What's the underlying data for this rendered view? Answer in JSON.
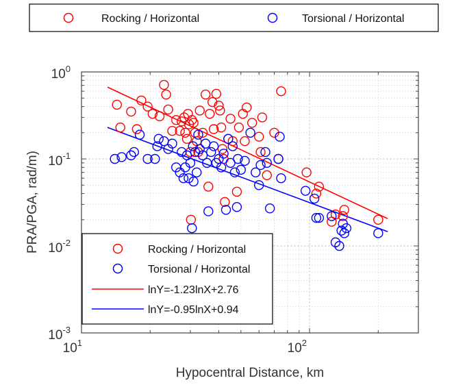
{
  "chart_data": {
    "type": "scatter",
    "xlabel": "Hypocentral Distance, km",
    "ylabel": "PRA/PGA, rad/m)",
    "x_scale": "log",
    "y_scale": "log",
    "xlim": [
      10,
      300
    ],
    "ylim": [
      0.001,
      1
    ],
    "x_ticks": [
      {
        "base": "10",
        "exp": "1",
        "value": 10
      },
      {
        "base": "10",
        "exp": "2",
        "value": 100
      }
    ],
    "y_ticks": [
      {
        "base": "10",
        "exp": "0",
        "value": 1
      },
      {
        "base": "10",
        "exp": "-1",
        "value": 0.1
      },
      {
        "base": "10",
        "exp": "-2",
        "value": 0.01
      },
      {
        "base": "10",
        "exp": "-3",
        "value": 0.001
      }
    ],
    "grid": true,
    "top_legend": {
      "placement": "top",
      "entries": [
        {
          "label": "Rocking / Horizontal",
          "series": 0
        },
        {
          "label": "Torsional / Horizontal",
          "series": 1
        }
      ]
    },
    "inner_legend": {
      "placement": "bottom-left",
      "entries": [
        {
          "label": "Rocking / Horizontal",
          "kind": "marker",
          "color": "#ff0000"
        },
        {
          "label": "Torsional / Horizontal",
          "kind": "marker",
          "color": "#0000ff"
        },
        {
          "label": "lnY=-1.23lnX+2.76",
          "kind": "line",
          "color": "#ff0000"
        },
        {
          "label": "lnY=-0.95lnX+0.94",
          "kind": "line",
          "color": "#0000ff"
        }
      ]
    },
    "series": [
      {
        "name": "Rocking / Horizontal",
        "marker": "open-circle",
        "color": "#ff0000",
        "points": [
          [
            14.3,
            0.42
          ],
          [
            14.8,
            0.23
          ],
          [
            16.5,
            0.35
          ],
          [
            17.5,
            0.22
          ],
          [
            18.3,
            0.47
          ],
          [
            19.5,
            0.4
          ],
          [
            20.5,
            0.33
          ],
          [
            22,
            0.31
          ],
          [
            23,
            0.71
          ],
          [
            23.5,
            0.55
          ],
          [
            24,
            0.37
          ],
          [
            25,
            0.21
          ],
          [
            26,
            0.28
          ],
          [
            27,
            0.21
          ],
          [
            27.5,
            0.27
          ],
          [
            28.2,
            0.3
          ],
          [
            28.5,
            0.2
          ],
          [
            29,
            0.17
          ],
          [
            29.3,
            0.33
          ],
          [
            29.6,
            0.25
          ],
          [
            30,
            0.12
          ],
          [
            30.2,
            0.02
          ],
          [
            30.5,
            0.28
          ],
          [
            31,
            0.26
          ],
          [
            31.5,
            0.2
          ],
          [
            32,
            0.16
          ],
          [
            32.5,
            0.12
          ],
          [
            33,
            0.36
          ],
          [
            34,
            0.2
          ],
          [
            35,
            0.55
          ],
          [
            36,
            0.048
          ],
          [
            36.5,
            0.33
          ],
          [
            37.5,
            0.45
          ],
          [
            38,
            0.22
          ],
          [
            39,
            0.56
          ],
          [
            40,
            0.41
          ],
          [
            40.5,
            0.36
          ],
          [
            41,
            0.23
          ],
          [
            41.5,
            0.13
          ],
          [
            42,
            0.1
          ],
          [
            42.5,
            0.032
          ],
          [
            44,
            0.17
          ],
          [
            45,
            0.29
          ],
          [
            46,
            0.16
          ],
          [
            48,
            0.042
          ],
          [
            49,
            0.23
          ],
          [
            51,
            0.33
          ],
          [
            52,
            0.16
          ],
          [
            53,
            0.39
          ],
          [
            56,
            0.26
          ],
          [
            60,
            0.18
          ],
          [
            61,
            0.12
          ],
          [
            62,
            0.3
          ],
          [
            65,
            0.065
          ],
          [
            70,
            0.2
          ],
          [
            73,
            0.1
          ],
          [
            75,
            0.6
          ],
          [
            97,
            0.07
          ],
          [
            107,
            0.04
          ],
          [
            110,
            0.048
          ],
          [
            125,
            0.019
          ],
          [
            130,
            0.023
          ],
          [
            140,
            0.022
          ],
          [
            142,
            0.026
          ],
          [
            200,
            0.02
          ]
        ]
      },
      {
        "name": "Torsional / Horizontal",
        "marker": "open-circle",
        "color": "#0000ff",
        "points": [
          [
            14,
            0.1
          ],
          [
            15,
            0.105
          ],
          [
            16.5,
            0.11
          ],
          [
            17,
            0.12
          ],
          [
            18,
            0.19
          ],
          [
            19.5,
            0.1
          ],
          [
            21,
            0.1
          ],
          [
            21.5,
            0.14
          ],
          [
            21.8,
            0.17
          ],
          [
            23,
            0.16
          ],
          [
            24,
            0.13
          ],
          [
            25,
            0.15
          ],
          [
            26,
            0.08
          ],
          [
            27,
            0.07
          ],
          [
            27.5,
            0.12
          ],
          [
            28,
            0.06
          ],
          [
            28.5,
            0.08
          ],
          [
            29,
            0.11
          ],
          [
            29.5,
            0.06
          ],
          [
            30,
            0.09
          ],
          [
            30.5,
            0.016
          ],
          [
            30.8,
            0.14
          ],
          [
            31,
            0.055
          ],
          [
            31.5,
            0.12
          ],
          [
            32,
            0.07
          ],
          [
            32.5,
            0.19
          ],
          [
            33,
            0.13
          ],
          [
            34,
            0.11
          ],
          [
            35,
            0.15
          ],
          [
            35.5,
            0.09
          ],
          [
            36,
            0.025
          ],
          [
            37,
            0.12
          ],
          [
            38,
            0.14
          ],
          [
            39,
            0.09
          ],
          [
            40,
            0.1
          ],
          [
            41,
            0.08
          ],
          [
            42,
            0.115
          ],
          [
            43,
            0.026
          ],
          [
            44,
            0.17
          ],
          [
            45,
            0.09
          ],
          [
            46,
            0.14
          ],
          [
            47,
            0.07
          ],
          [
            48,
            0.028
          ],
          [
            48.5,
            0.1
          ],
          [
            50,
            0.075
          ],
          [
            52,
            0.095
          ],
          [
            55,
            0.2
          ],
          [
            58,
            0.07
          ],
          [
            60,
            0.05
          ],
          [
            61,
            0.085
          ],
          [
            64,
            0.12
          ],
          [
            65,
            0.09
          ],
          [
            67,
            0.027
          ],
          [
            73,
            0.1
          ],
          [
            74,
            0.18
          ],
          [
            75,
            0.06
          ],
          [
            96,
            0.043
          ],
          [
            105,
            0.035
          ],
          [
            107,
            0.021
          ],
          [
            110,
            0.021
          ],
          [
            125,
            0.022
          ],
          [
            130,
            0.011
          ],
          [
            135,
            0.01
          ],
          [
            138,
            0.015
          ],
          [
            140,
            0.018
          ],
          [
            142,
            0.014
          ],
          [
            145,
            0.016
          ],
          [
            200,
            0.014
          ]
        ]
      }
    ],
    "fits": [
      {
        "label": "lnY=-1.23lnX+2.76",
        "color": "#ff0000",
        "x_range": [
          13,
          220
        ],
        "points": [
          [
            13,
            0.67
          ],
          [
            220,
            0.0206
          ]
        ]
      },
      {
        "label": "lnY=-0.95lnX+0.94",
        "color": "#0000ff",
        "x_range": [
          13,
          220
        ],
        "points": [
          [
            13,
            0.23
          ],
          [
            220,
            0.0146
          ]
        ]
      }
    ]
  }
}
